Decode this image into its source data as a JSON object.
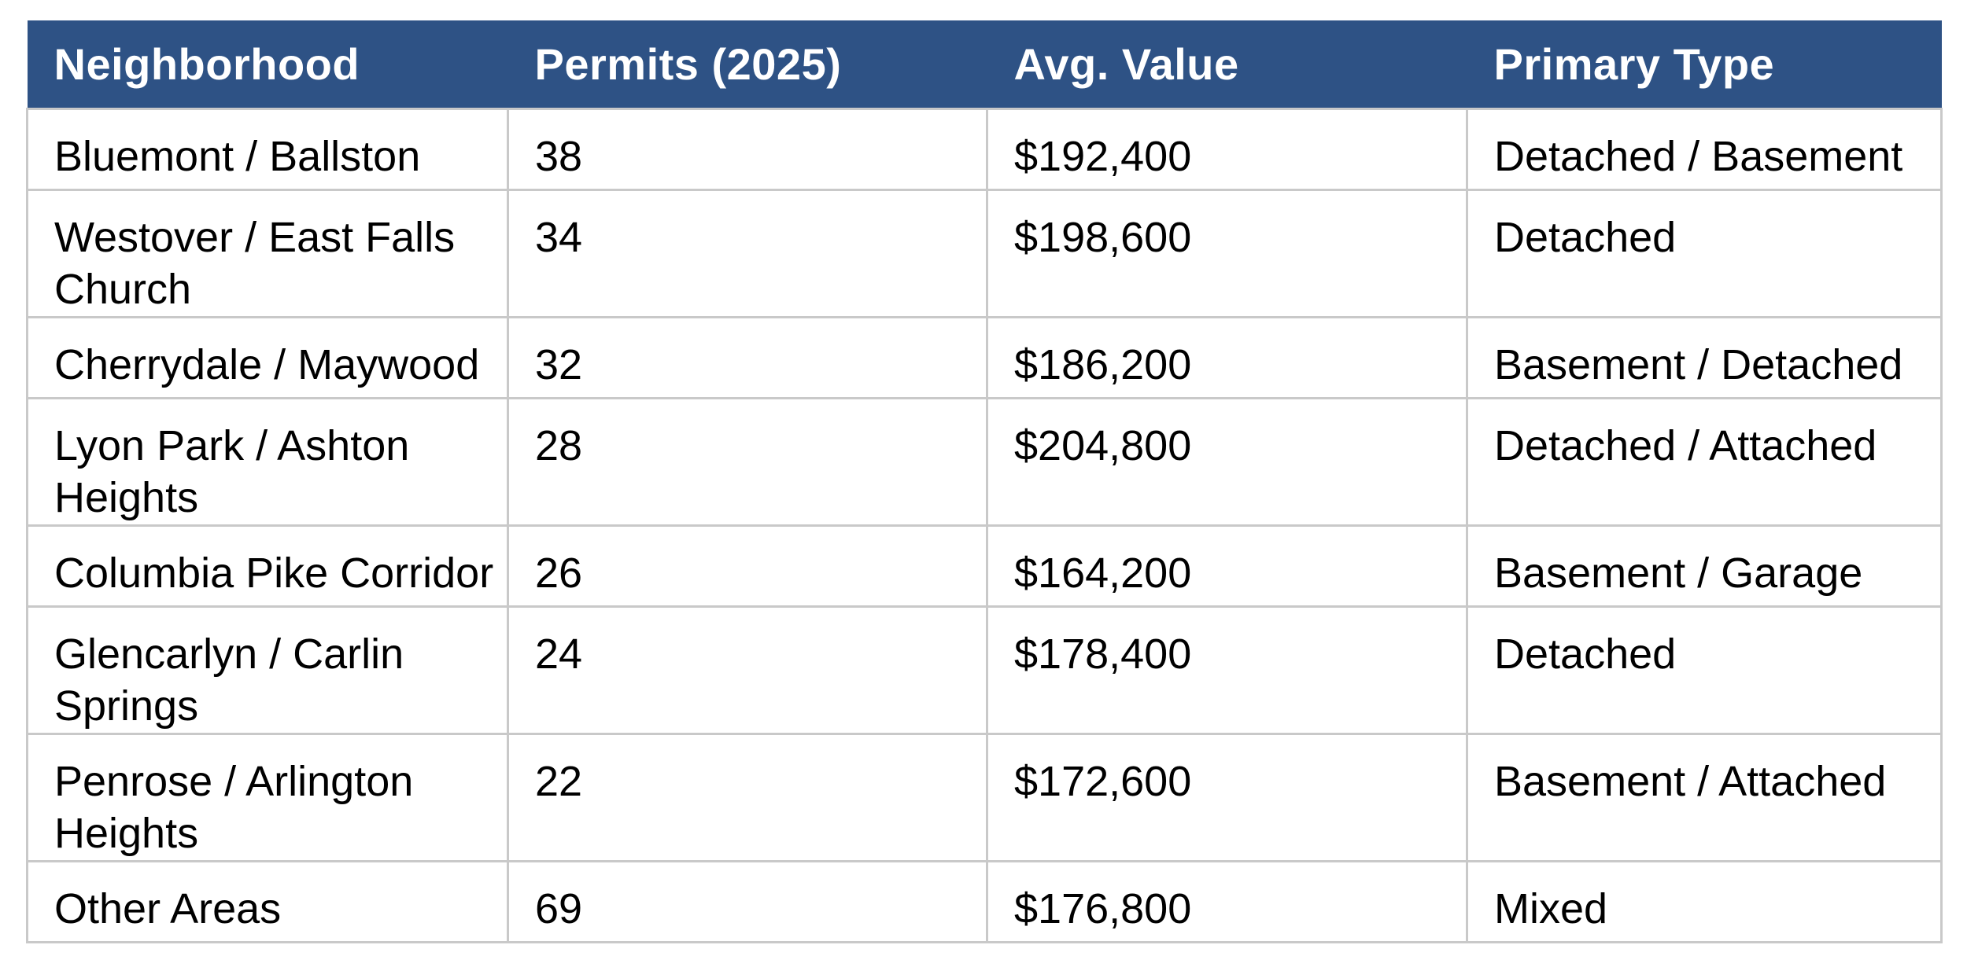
{
  "chart_data": {
    "type": "table",
    "columns": [
      "Neighborhood",
      "Permits (2025)",
      "Avg. Value",
      "Primary Type"
    ],
    "rows": [
      [
        "Bluemont / Ballston",
        "38",
        "$192,400",
        "Detached / Basement"
      ],
      [
        "Westover / East Falls Church",
        "34",
        "$198,600",
        "Detached"
      ],
      [
        "Cherrydale / Maywood",
        "32",
        "$186,200",
        "Basement / Detached"
      ],
      [
        "Lyon Park / Ashton Heights",
        "28",
        "$204,800",
        "Detached / Attached"
      ],
      [
        "Columbia Pike Corridor",
        "26",
        "$164,200",
        "Basement / Garage"
      ],
      [
        "Glencarlyn / Carlin Springs",
        "24",
        "$178,400",
        "Detached"
      ],
      [
        "Penrose / Arlington Heights",
        "22",
        "$172,600",
        "Basement / Attached"
      ],
      [
        "Other Areas",
        "69",
        "$176,800",
        "Mixed"
      ]
    ],
    "permits_numeric": [
      38,
      34,
      32,
      28,
      26,
      24,
      22,
      69
    ],
    "avg_value_numeric_usd": [
      192400,
      198600,
      186200,
      204800,
      164200,
      178400,
      172600,
      176800
    ],
    "title": "",
    "legend_position": "none",
    "grid": "on"
  },
  "colors": {
    "header_bg": "#2e5285",
    "header_text": "#ffffff",
    "body_text": "#000000",
    "grid_border": "#c9c9c9",
    "row_bg": "#ffffff",
    "page_bg": "#ffffff"
  }
}
